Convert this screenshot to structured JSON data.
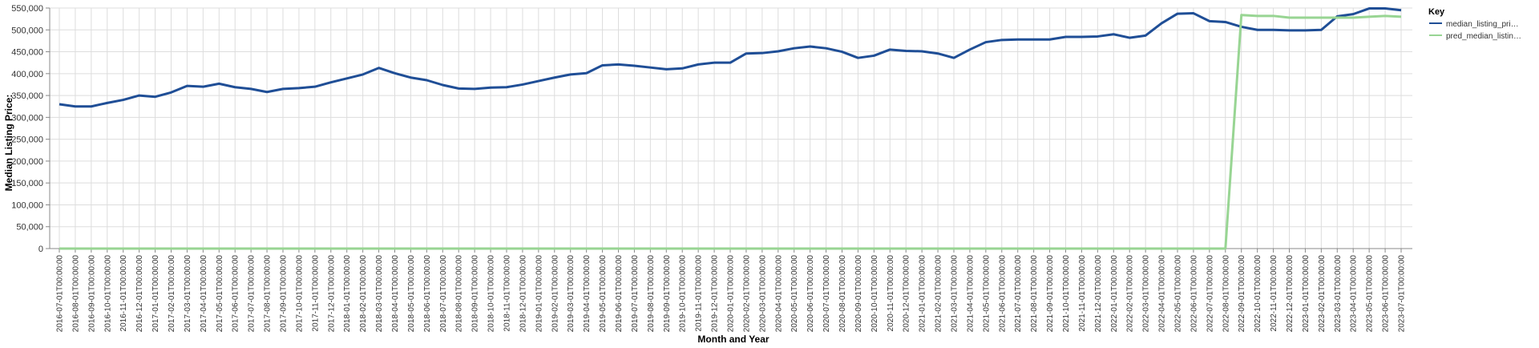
{
  "chart_data": {
    "type": "line",
    "xlabel": "Month and Year",
    "ylabel": "Median Listing Price:",
    "ylim": [
      0,
      550000
    ],
    "yticks": [
      0,
      50000,
      100000,
      150000,
      200000,
      250000,
      300000,
      350000,
      400000,
      450000,
      500000,
      550000
    ],
    "ytick_labels": [
      "0",
      "50,000",
      "100,000",
      "150,000",
      "200,000",
      "250,000",
      "300,000",
      "350,000",
      "400,000",
      "450,000",
      "500,000",
      "550,000"
    ],
    "grid": true,
    "legend": {
      "title": "Key",
      "placement": "top-right",
      "entries": [
        {
          "label": "median_listing_pri…",
          "color": "#1f4e96"
        },
        {
          "label": "pred_median_listin…",
          "color": "#98d593"
        }
      ]
    },
    "x": [
      "2016-07-01T00:00:00",
      "2016-08-01T00:00:00",
      "2016-09-01T00:00:00",
      "2016-10-01T00:00:00",
      "2016-11-01T00:00:00",
      "2016-12-01T00:00:00",
      "2017-01-01T00:00:00",
      "2017-02-01T00:00:00",
      "2017-03-01T00:00:00",
      "2017-04-01T00:00:00",
      "2017-05-01T00:00:00",
      "2017-06-01T00:00:00",
      "2017-07-01T00:00:00",
      "2017-08-01T00:00:00",
      "2017-09-01T00:00:00",
      "2017-10-01T00:00:00",
      "2017-11-01T00:00:00",
      "2017-12-01T00:00:00",
      "2018-01-01T00:00:00",
      "2018-02-01T00:00:00",
      "2018-03-01T00:00:00",
      "2018-04-01T00:00:00",
      "2018-05-01T00:00:00",
      "2018-06-01T00:00:00",
      "2018-07-01T00:00:00",
      "2018-08-01T00:00:00",
      "2018-09-01T00:00:00",
      "2018-10-01T00:00:00",
      "2018-11-01T00:00:00",
      "2018-12-01T00:00:00",
      "2019-01-01T00:00:00",
      "2019-02-01T00:00:00",
      "2019-03-01T00:00:00",
      "2019-04-01T00:00:00",
      "2019-05-01T00:00:00",
      "2019-06-01T00:00:00",
      "2019-07-01T00:00:00",
      "2019-08-01T00:00:00",
      "2019-09-01T00:00:00",
      "2019-10-01T00:00:00",
      "2019-11-01T00:00:00",
      "2019-12-01T00:00:00",
      "2020-01-01T00:00:00",
      "2020-02-01T00:00:00",
      "2020-03-01T00:00:00",
      "2020-04-01T00:00:00",
      "2020-05-01T00:00:00",
      "2020-06-01T00:00:00",
      "2020-07-01T00:00:00",
      "2020-08-01T00:00:00",
      "2020-09-01T00:00:00",
      "2020-10-01T00:00:00",
      "2020-11-01T00:00:00",
      "2020-12-01T00:00:00",
      "2021-01-01T00:00:00",
      "2021-02-01T00:00:00",
      "2021-03-01T00:00:00",
      "2021-04-01T00:00:00",
      "2021-05-01T00:00:00",
      "2021-06-01T00:00:00",
      "2021-07-01T00:00:00",
      "2021-08-01T00:00:00",
      "2021-09-01T00:00:00",
      "2021-10-01T00:00:00",
      "2021-11-01T00:00:00",
      "2021-12-01T00:00:00",
      "2022-01-01T00:00:00",
      "2022-02-01T00:00:00",
      "2022-03-01T00:00:00",
      "2022-04-01T00:00:00",
      "2022-05-01T00:00:00",
      "2022-06-01T00:00:00",
      "2022-07-01T00:00:00",
      "2022-08-01T00:00:00",
      "2022-09-01T00:00:00",
      "2022-10-01T00:00:00",
      "2022-11-01T00:00:00",
      "2022-12-01T00:00:00",
      "2023-01-01T00:00:00",
      "2023-02-01T00:00:00",
      "2023-03-01T00:00:00",
      "2023-04-01T00:00:00",
      "2023-05-01T00:00:00",
      "2023-06-01T00:00:00",
      "2023-07-01T00:00:00"
    ],
    "series": [
      {
        "name": "median_listing_pri…",
        "color": "#1f4e96",
        "values": [
          330000,
          325000,
          325000,
          333000,
          340000,
          350000,
          347000,
          357000,
          372000,
          370000,
          377000,
          369000,
          365000,
          358000,
          365000,
          367000,
          370000,
          380000,
          389000,
          398000,
          413000,
          401000,
          391000,
          385000,
          374000,
          366000,
          365000,
          368000,
          369000,
          375000,
          383000,
          391000,
          398000,
          401000,
          419000,
          421000,
          418000,
          414000,
          410000,
          412000,
          421000,
          425000,
          425000,
          446000,
          447000,
          451000,
          458000,
          462000,
          458000,
          450000,
          436000,
          441000,
          455000,
          452000,
          451000,
          446000,
          436000,
          455000,
          472000,
          477000,
          478000,
          478000,
          478000,
          484000,
          484000,
          485000,
          490000,
          482000,
          487000,
          515000,
          537000,
          538000,
          520000,
          518000,
          507000,
          500000,
          500000,
          499000,
          499000,
          500000,
          531000,
          536000,
          549000,
          549000,
          545000
        ]
      },
      {
        "name": "pred_median_listin…",
        "color": "#98d593",
        "values": [
          0,
          0,
          0,
          0,
          0,
          0,
          0,
          0,
          0,
          0,
          0,
          0,
          0,
          0,
          0,
          0,
          0,
          0,
          0,
          0,
          0,
          0,
          0,
          0,
          0,
          0,
          0,
          0,
          0,
          0,
          0,
          0,
          0,
          0,
          0,
          0,
          0,
          0,
          0,
          0,
          0,
          0,
          0,
          0,
          0,
          0,
          0,
          0,
          0,
          0,
          0,
          0,
          0,
          0,
          0,
          0,
          0,
          0,
          0,
          0,
          0,
          0,
          0,
          0,
          0,
          0,
          0,
          0,
          0,
          0,
          0,
          0,
          0,
          0,
          534000,
          532000,
          532000,
          528000,
          528000,
          528000,
          528000,
          528000,
          530000,
          532000,
          530000
        ]
      }
    ]
  }
}
